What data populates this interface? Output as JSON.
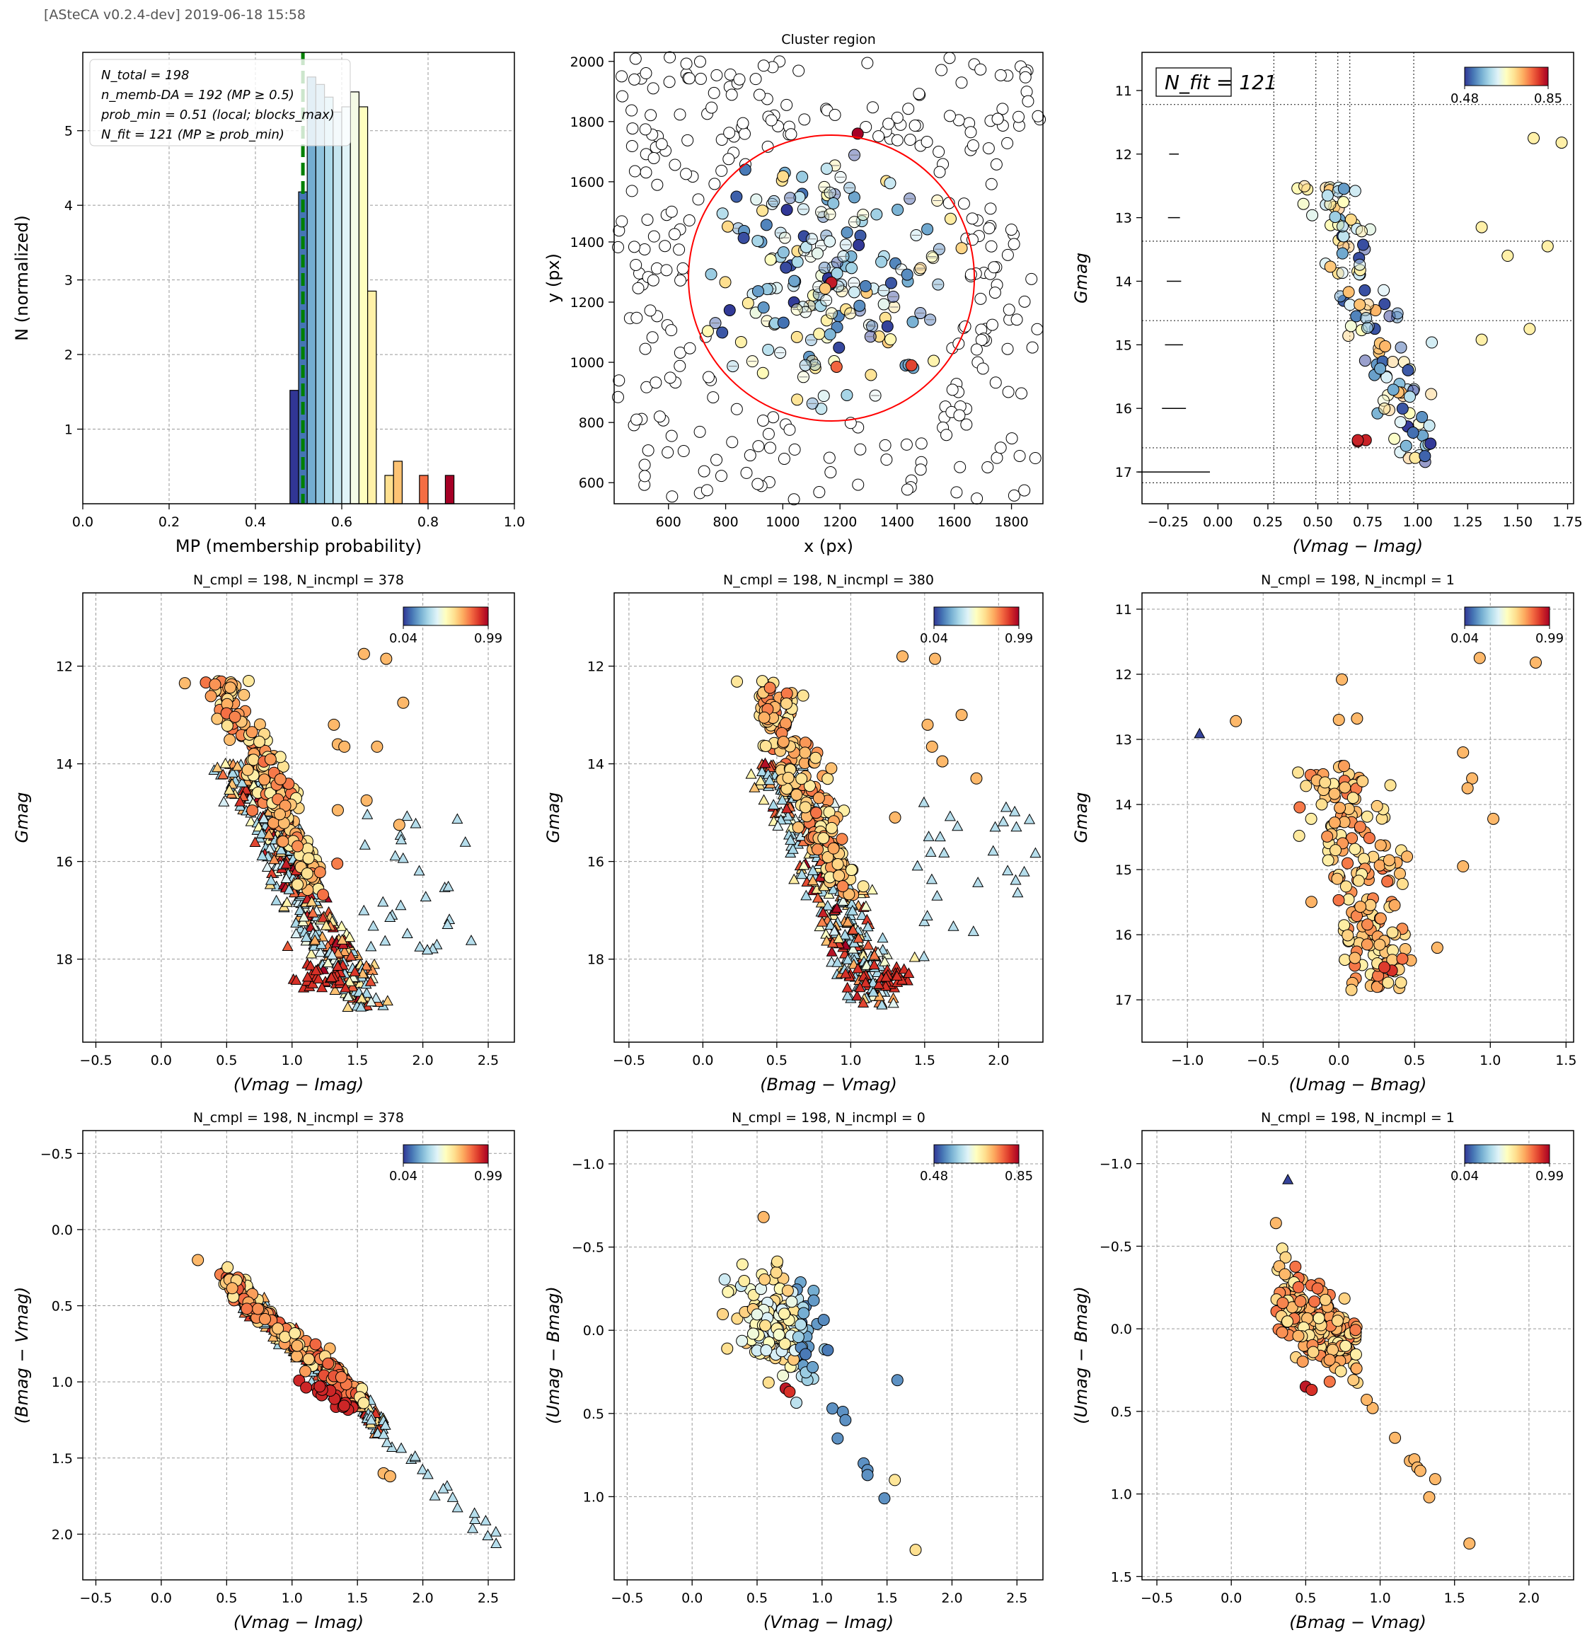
{
  "header": {
    "text": "[ASteCA v0.2.4-dev] 2019-06-18 15:58"
  },
  "chart_data": [
    {
      "id": "mp-histogram",
      "type": "bar",
      "title": "",
      "xlabel": "MP (membership probability)",
      "ylabel": "N (normalized)",
      "xlim": [
        0,
        1
      ],
      "ylim": [
        0,
        6.05
      ],
      "xticks": [
        "0.0",
        "0.2",
        "0.4",
        "0.6",
        "0.8",
        "1.0"
      ],
      "yticks": [
        "1",
        "2",
        "3",
        "4",
        "5"
      ],
      "grid": true,
      "bins": [
        {
          "x0": 0.48,
          "x1": 0.5,
          "value": 1.52,
          "color": "#313695"
        },
        {
          "x0": 0.5,
          "x1": 0.52,
          "value": 4.18,
          "color": "#4575b4"
        },
        {
          "x0": 0.52,
          "x1": 0.54,
          "value": 5.72,
          "color": "#74add1"
        },
        {
          "x0": 0.54,
          "x1": 0.56,
          "value": 5.62,
          "color": "#8fc3dd"
        },
        {
          "x0": 0.56,
          "x1": 0.58,
          "value": 5.45,
          "color": "#abd9e9"
        },
        {
          "x0": 0.58,
          "x1": 0.6,
          "value": 5.25,
          "color": "#c6e6f0"
        },
        {
          "x0": 0.6,
          "x1": 0.62,
          "value": 5.32,
          "color": "#e0f3f8"
        },
        {
          "x0": 0.62,
          "x1": 0.64,
          "value": 5.52,
          "color": "#f5fbe6"
        },
        {
          "x0": 0.64,
          "x1": 0.66,
          "value": 5.32,
          "color": "#ffffbf"
        },
        {
          "x0": 0.66,
          "x1": 0.68,
          "value": 2.85,
          "color": "#fff1a8"
        },
        {
          "x0": 0.7,
          "x1": 0.72,
          "value": 0.38,
          "color": "#fee090"
        },
        {
          "x0": 0.72,
          "x1": 0.74,
          "value": 0.57,
          "color": "#fdc374"
        },
        {
          "x0": 0.78,
          "x1": 0.8,
          "value": 0.38,
          "color": "#f46d43"
        },
        {
          "x0": 0.84,
          "x1": 0.86,
          "value": 0.38,
          "color": "#a50026"
        }
      ],
      "vline": {
        "x": 0.51,
        "color": "#008000"
      },
      "legend_placement": "top-left",
      "legend": [
        "N_total = 198",
        "n_memb-DA = 192 (MP ≥ 0.5)",
        "prob_min = 0.51 (local; blocks_max)",
        "N_fit = 121 (MP ≥ prob_min)"
      ]
    },
    {
      "id": "cluster-region",
      "type": "scatter",
      "title": "Cluster region",
      "xlabel": "x (px)",
      "ylabel": "y (px)",
      "xlim": [
        410,
        1910
      ],
      "ylim": [
        530,
        2030
      ],
      "xticks": [
        "600",
        "800",
        "1000",
        "1200",
        "1400",
        "1600",
        "1800"
      ],
      "yticks": [
        "600",
        "800",
        "1000",
        "1200",
        "1400",
        "1600",
        "1800",
        "2000"
      ],
      "grid": false,
      "circle": {
        "cx": 1170,
        "cy": 1280,
        "r": 500,
        "color": "#ff0000"
      },
      "n_field": 300,
      "n_members": 192,
      "highlighted": [
        {
          "x": 1262,
          "y": 1760,
          "mp": 0.85
        },
        {
          "x": 1170,
          "y": 1265,
          "mp": 0.83
        },
        {
          "x": 1450,
          "y": 990,
          "mp": 0.8
        },
        {
          "x": 1188,
          "y": 985,
          "mp": 0.78
        },
        {
          "x": 1148,
          "y": 1245,
          "mp": 0.72
        }
      ]
    },
    {
      "id": "cmd-fit",
      "type": "scatter",
      "title": "",
      "xlabel": "(Vmag − Imag)",
      "ylabel": "Gmag",
      "xlim": [
        -0.38,
        1.78
      ],
      "ylim": [
        17.5,
        10.4
      ],
      "y_inverted": true,
      "xticks": [
        "−0.25",
        "0.00",
        "0.25",
        "0.50",
        "0.75",
        "1.00",
        "1.25",
        "1.50",
        "1.75"
      ],
      "yticks": [
        "11",
        "12",
        "13",
        "14",
        "15",
        "16",
        "17"
      ],
      "grid": false,
      "annotation": "N_fit = 121",
      "colorbar": {
        "min": "0.48",
        "max": "0.85"
      },
      "binning_x": [
        0.28,
        0.49,
        0.6,
        0.66,
        0.98
      ],
      "binning_y": [
        11.22,
        13.37,
        14.62,
        16.62,
        17.17
      ],
      "error_bars": [
        {
          "y": 12.0,
          "w": 0.008
        },
        {
          "y": 13.0,
          "w": 0.01
        },
        {
          "y": 14.0,
          "w": 0.012
        },
        {
          "y": 15.0,
          "w": 0.015
        },
        {
          "y": 16.0,
          "w": 0.02
        },
        {
          "y": 17.0,
          "w": 0.06
        }
      ],
      "n_points": 121
    },
    {
      "id": "cmd-vi",
      "type": "scatter",
      "title": "N_cmpl = 198, N_incmpl = 378",
      "xlabel": "(Vmag − Imag)",
      "ylabel": "Gmag",
      "xlim": [
        -0.6,
        2.7
      ],
      "ylim": [
        19.7,
        10.5
      ],
      "y_inverted": true,
      "xticks": [
        "−0.5",
        "0.0",
        "0.5",
        "1.0",
        "1.5",
        "2.0",
        "2.5"
      ],
      "yticks": [
        "12",
        "14",
        "16",
        "18"
      ],
      "grid": true,
      "colorbar": {
        "min": "0.04",
        "max": "0.99"
      },
      "n_cmpl": 198,
      "n_incmpl": 378
    },
    {
      "id": "cmd-bv",
      "type": "scatter",
      "title": "N_cmpl = 198, N_incmpl = 380",
      "xlabel": "(Bmag − Vmag)",
      "ylabel": "Gmag",
      "xlim": [
        -0.6,
        2.3
      ],
      "ylim": [
        19.7,
        10.5
      ],
      "y_inverted": true,
      "xticks": [
        "−0.5",
        "0.0",
        "0.5",
        "1.0",
        "1.5",
        "2.0"
      ],
      "yticks": [
        "12",
        "14",
        "16",
        "18"
      ],
      "grid": true,
      "colorbar": {
        "min": "0.04",
        "max": "0.99"
      },
      "n_cmpl": 198,
      "n_incmpl": 380
    },
    {
      "id": "cmd-ub",
      "type": "scatter",
      "title": "N_cmpl = 198, N_incmpl = 1",
      "xlabel": "(Umag − Bmag)",
      "ylabel": "Gmag",
      "xlim": [
        -1.3,
        1.55
      ],
      "ylim": [
        17.65,
        10.75
      ],
      "y_inverted": true,
      "xticks": [
        "−1.0",
        "−0.5",
        "0.0",
        "0.5",
        "1.0",
        "1.5"
      ],
      "yticks": [
        "11",
        "12",
        "13",
        "14",
        "15",
        "16",
        "17"
      ],
      "grid": true,
      "colorbar": {
        "min": "0.04",
        "max": "0.99"
      },
      "n_cmpl": 198,
      "n_incmpl": 1
    },
    {
      "id": "ccd-vi-bv",
      "type": "scatter",
      "title": "N_cmpl = 198, N_incmpl = 378",
      "xlabel": "(Vmag − Imag)",
      "ylabel": "(Bmag − Vmag)",
      "xlim": [
        -0.6,
        2.7
      ],
      "ylim": [
        2.3,
        -0.65
      ],
      "y_inverted": true,
      "xticks": [
        "−0.5",
        "0.0",
        "0.5",
        "1.0",
        "1.5",
        "2.0",
        "2.5"
      ],
      "yticks": [
        "−0.5",
        "0.0",
        "0.5",
        "1.0",
        "1.5",
        "2.0"
      ],
      "grid": true,
      "colorbar": {
        "min": "0.04",
        "max": "0.99"
      },
      "n_cmpl": 198,
      "n_incmpl": 378
    },
    {
      "id": "ccd-vi-ub",
      "type": "scatter",
      "title": "N_cmpl = 198, N_incmpl = 0",
      "xlabel": "(Vmag − Imag)",
      "ylabel": "(Umag − Bmag)",
      "xlim": [
        -0.6,
        2.7
      ],
      "ylim": [
        1.5,
        -1.2
      ],
      "y_inverted": true,
      "xticks": [
        "−0.5",
        "0.0",
        "0.5",
        "1.0",
        "1.5",
        "2.0",
        "2.5"
      ],
      "yticks": [
        "−1.0",
        "−0.5",
        "0.0",
        "0.5",
        "1.0"
      ],
      "grid": true,
      "colorbar": {
        "min": "0.48",
        "max": "0.85"
      },
      "n_cmpl": 198,
      "n_incmpl": 0
    },
    {
      "id": "ccd-bv-ub",
      "type": "scatter",
      "title": "N_cmpl = 198, N_incmpl = 1",
      "xlabel": "(Bmag − Vmag)",
      "ylabel": "(Umag − Bmag)",
      "xlim": [
        -0.6,
        2.3
      ],
      "ylim": [
        1.52,
        -1.2
      ],
      "y_inverted": true,
      "xticks": [
        "−0.5",
        "0.0",
        "0.5",
        "1.0",
        "1.5",
        "2.0"
      ],
      "yticks": [
        "−1.0",
        "−0.5",
        "0.0",
        "0.5",
        "1.0",
        "1.5"
      ],
      "grid": true,
      "colorbar": {
        "min": "0.04",
        "max": "0.99"
      },
      "n_cmpl": 198,
      "n_incmpl": 1
    }
  ]
}
